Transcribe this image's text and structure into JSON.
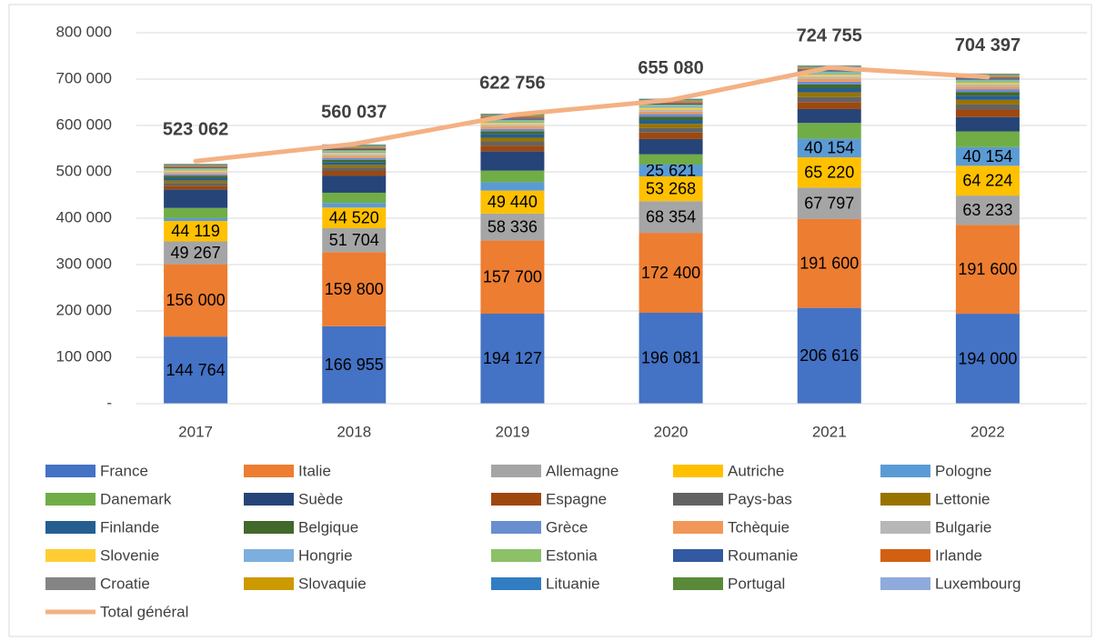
{
  "chart_data": {
    "type": "bar",
    "stacked": true,
    "grid": true,
    "categories": [
      "2017",
      "2018",
      "2019",
      "2020",
      "2021",
      "2022"
    ],
    "ylim": [
      0,
      800000
    ],
    "yticks": [
      {
        "value": 0,
        "label": "-"
      },
      {
        "value": 100000,
        "label": "100 000"
      },
      {
        "value": 200000,
        "label": "200 000"
      },
      {
        "value": 300000,
        "label": "300 000"
      },
      {
        "value": 400000,
        "label": "400 000"
      },
      {
        "value": 500000,
        "label": "500 000"
      },
      {
        "value": 600000,
        "label": "600 000"
      },
      {
        "value": 700000,
        "label": "700 000"
      },
      {
        "value": 800000,
        "label": "800 000"
      }
    ],
    "series": [
      {
        "name": "France",
        "color": "#4472c4",
        "values": [
          144764,
          166955,
          194127,
          196081,
          206616,
          194000
        ],
        "value_labels": [
          "144 764",
          "166 955",
          "194 127",
          "196 081",
          "206 616",
          "194 000"
        ]
      },
      {
        "name": "Italie",
        "color": "#ed7d31",
        "values": [
          156000,
          159800,
          157700,
          172400,
          191600,
          191600
        ],
        "value_labels": [
          "156 000",
          "159 800",
          "157 700",
          "172 400",
          "191 600",
          "191 600"
        ]
      },
      {
        "name": "Allemagne",
        "color": "#a5a5a5",
        "values": [
          49267,
          51704,
          58336,
          68354,
          67797,
          63233
        ],
        "value_labels": [
          "49 267",
          "51 704",
          "58 336",
          "68 354",
          "67 797",
          "63 233"
        ]
      },
      {
        "name": "Autriche",
        "color": "#ffc000",
        "values": [
          44119,
          44520,
          49440,
          53268,
          65220,
          64224
        ],
        "value_labels": [
          "44 119",
          "44 520",
          "49 440",
          "53 268",
          "65 220",
          "64 224"
        ]
      },
      {
        "name": "Pologne",
        "color": "#5b9bd5",
        "values": [
          6000,
          10000,
          18000,
          25621,
          40154,
          40154
        ],
        "value_labels": [
          null,
          null,
          null,
          "25 621",
          "40 154",
          "40 154"
        ]
      },
      {
        "name": "Danemark",
        "color": "#70ad47",
        "values": [
          22000,
          22000,
          25000,
          22000,
          34000,
          34000
        ]
      },
      {
        "name": "Suède",
        "color": "#264478",
        "values": [
          40000,
          37000,
          42000,
          33000,
          30000,
          31000
        ]
      },
      {
        "name": "Espagne",
        "color": "#9e480e",
        "values": [
          8000,
          10000,
          12000,
          14000,
          15000,
          16000
        ]
      },
      {
        "name": "Pays-bas",
        "color": "#636363",
        "values": [
          6000,
          7000,
          9000,
          10000,
          11000,
          11000
        ]
      },
      {
        "name": "Lettonie",
        "color": "#997300",
        "values": [
          5000,
          6000,
          8000,
          9000,
          10000,
          10000
        ]
      },
      {
        "name": "Finlande",
        "color": "#255e91",
        "values": [
          6000,
          6000,
          8000,
          8000,
          9000,
          9000
        ]
      },
      {
        "name": "Belgique",
        "color": "#43682b",
        "values": [
          4000,
          5000,
          6000,
          7000,
          8000,
          8000
        ]
      },
      {
        "name": "Grèce",
        "color": "#698ed0",
        "values": [
          3000,
          4000,
          5000,
          6000,
          6000,
          6000
        ]
      },
      {
        "name": "Tchèquie",
        "color": "#f1975a",
        "values": [
          3000,
          4000,
          5000,
          5000,
          6000,
          5000
        ]
      },
      {
        "name": "Bulgarie",
        "color": "#b7b7b7",
        "values": [
          3000,
          3500,
          4000,
          4500,
          5000,
          5000
        ]
      },
      {
        "name": "Slovenie",
        "color": "#ffcd33",
        "values": [
          2500,
          3000,
          4000,
          4000,
          4000,
          4000
        ]
      },
      {
        "name": "Hongrie",
        "color": "#7cafdd",
        "values": [
          2500,
          3000,
          3500,
          3500,
          4000,
          3500
        ]
      },
      {
        "name": "Estonia",
        "color": "#8cc168",
        "values": [
          2500,
          3000,
          3000,
          3000,
          3000,
          3000
        ]
      },
      {
        "name": "Roumanie",
        "color": "#335aa1",
        "values": [
          2000,
          2500,
          3000,
          3000,
          3000,
          3000
        ]
      },
      {
        "name": "Irlande",
        "color": "#d26012",
        "values": [
          2000,
          2500,
          2500,
          2500,
          2500,
          2500
        ]
      },
      {
        "name": "Croatie",
        "color": "#848484",
        "values": [
          1500,
          2000,
          2000,
          2000,
          2000,
          2000
        ]
      },
      {
        "name": "Slovaquie",
        "color": "#cc9a00",
        "values": [
          1500,
          2000,
          2000,
          2000,
          2000,
          2000
        ]
      },
      {
        "name": "Lituanie",
        "color": "#327dc2",
        "values": [
          1500,
          1500,
          1500,
          1500,
          1500,
          1500
        ]
      },
      {
        "name": "Portugal",
        "color": "#5a8a39",
        "values": [
          1000,
          1500,
          1500,
          1500,
          1500,
          1500
        ]
      },
      {
        "name": "Luxembourg",
        "color": "#8faadc",
        "values": [
          500,
          1000,
          1000,
          1000,
          1000,
          1000
        ]
      },
      {
        "name": "Total général",
        "type": "line",
        "color": "#f4b183",
        "values": [
          523062,
          560037,
          622756,
          655080,
          724755,
          704397
        ],
        "value_labels": [
          "523 062",
          "560 037",
          "622 756",
          "655 080",
          "724 755",
          "704 397"
        ]
      }
    ]
  }
}
